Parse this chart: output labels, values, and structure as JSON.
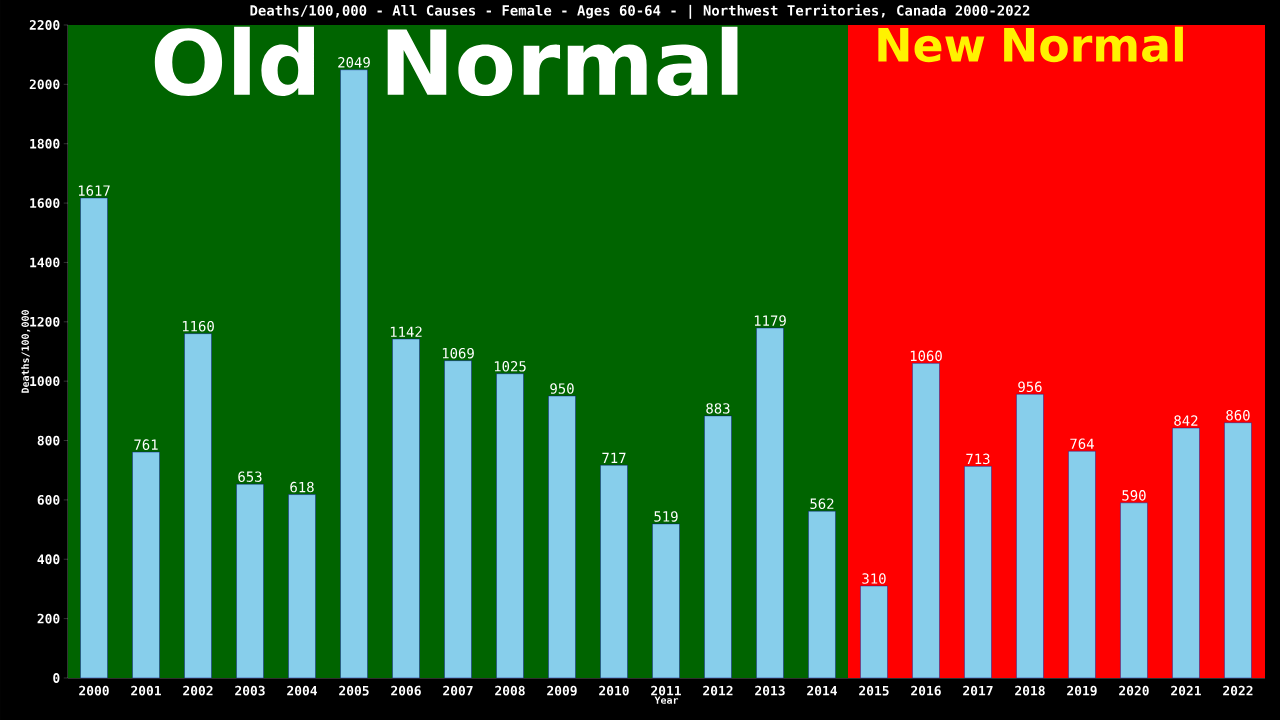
{
  "chart_data": {
    "type": "bar",
    "title": "Deaths/100,000 - All Causes - Female - Ages 60-64 -  | Northwest Territories, Canada 2000-2022",
    "xlabel": "Year",
    "ylabel": "Deaths/100,000",
    "categories": [
      "2000",
      "2001",
      "2002",
      "2003",
      "2004",
      "2005",
      "2006",
      "2007",
      "2008",
      "2009",
      "2010",
      "2011",
      "2012",
      "2013",
      "2014",
      "2015",
      "2016",
      "2017",
      "2018",
      "2019",
      "2020",
      "2021",
      "2022"
    ],
    "values": [
      1617,
      761,
      1160,
      653,
      618,
      2049,
      1142,
      1069,
      1025,
      950,
      717,
      519,
      883,
      1179,
      562,
      310,
      1060,
      713,
      956,
      764,
      590,
      842,
      860
    ],
    "color": "#87ceeb",
    "data_labels": true,
    "grid": false,
    "ylim": [
      0,
      2200
    ],
    "yticks": [
      0,
      200,
      400,
      600,
      800,
      1000,
      1200,
      1400,
      1600,
      1800,
      2000,
      2200
    ],
    "bands": [
      {
        "axis": "x",
        "from": "2000",
        "to": "2014",
        "label": "Old Normal",
        "color": "#006400"
      },
      {
        "axis": "x",
        "from": "2015",
        "to": "2022",
        "label": "New Normal",
        "color": "#ff0000"
      }
    ]
  }
}
